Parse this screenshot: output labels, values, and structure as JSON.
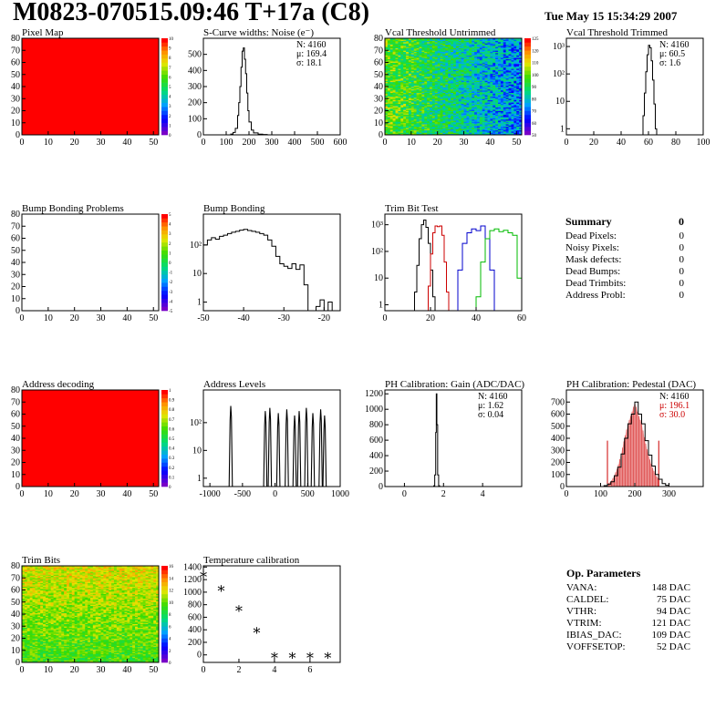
{
  "header": {
    "title": "M0823-070515.09:46 T+17a (C8)",
    "date": "Tue May 15 15:34:29 2007"
  },
  "summary": {
    "title": "Summary",
    "total": "0",
    "rows": [
      {
        "label": "Dead Pixels:",
        "value": "0"
      },
      {
        "label": "Noisy Pixels:",
        "value": "0"
      },
      {
        "label": "Mask defects:",
        "value": "0"
      },
      {
        "label": "Dead Bumps:",
        "value": "0"
      },
      {
        "label": "Dead Trimbits:",
        "value": "0"
      },
      {
        "label": "Address Probl:",
        "value": "0"
      }
    ]
  },
  "params": {
    "title": "Op. Parameters",
    "rows": [
      {
        "label": "VANA:",
        "value": "148 DAC"
      },
      {
        "label": "CALDEL:",
        "value": "75 DAC"
      },
      {
        "label": "VTHR:",
        "value": "94 DAC"
      },
      {
        "label": "VTRIM:",
        "value": "121 DAC"
      },
      {
        "label": "IBIAS_DAC:",
        "value": "109 DAC"
      },
      {
        "label": "VOFFSETOP:",
        "value": "52 DAC"
      }
    ]
  },
  "chart_data": [
    {
      "id": "c0",
      "type": "heatmap",
      "title": "Pixel Map",
      "uniform_color": "#ff0000",
      "xlim": [
        0,
        52
      ],
      "ylim": [
        0,
        80
      ],
      "xticks": [
        0,
        10,
        20,
        30,
        40,
        50
      ],
      "yticks": [
        0,
        10,
        20,
        30,
        40,
        50,
        60,
        70,
        80
      ],
      "zticks": [
        "0",
        "1",
        "2",
        "3",
        "4",
        "5",
        "6",
        "7",
        "8",
        "9",
        "10"
      ]
    },
    {
      "id": "c1",
      "type": "line",
      "title": "S-Curve widths: Noise (e⁻)",
      "xlim": [
        0,
        600
      ],
      "ylim": [
        0,
        600
      ],
      "xticks": [
        0,
        100,
        200,
        300,
        400,
        500,
        600
      ],
      "yticks": [
        0,
        100,
        200,
        300,
        400,
        500
      ],
      "stats": [
        "N: 4160",
        "μ: 169.4",
        "σ: 18.1"
      ],
      "series": [
        {
          "color": "#000000",
          "x": [
            100,
            120,
            130,
            140,
            150,
            155,
            160,
            165,
            170,
            175,
            180,
            185,
            190,
            195,
            200,
            210,
            220,
            240,
            260,
            280,
            300
          ],
          "y": [
            0,
            5,
            15,
            40,
            120,
            200,
            300,
            420,
            520,
            540,
            470,
            380,
            260,
            150,
            80,
            30,
            12,
            4,
            2,
            0,
            0
          ]
        }
      ]
    },
    {
      "id": "c2",
      "type": "heatmap",
      "title": "Vcal Threshold Untrimmed",
      "xlim": [
        0,
        52
      ],
      "ylim": [
        0,
        80
      ],
      "xticks": [
        0,
        10,
        20,
        30,
        40,
        50
      ],
      "yticks": [
        0,
        10,
        20,
        30,
        40,
        50,
        60,
        70,
        80
      ],
      "zticks": [
        "50",
        "60",
        "70",
        "80",
        "90",
        "100",
        "110",
        "120",
        "125"
      ],
      "pattern": "untrimmed"
    },
    {
      "id": "c3",
      "type": "line",
      "log": true,
      "title": "Vcal Threshold Trimmed",
      "xlim": [
        0,
        100
      ],
      "ylim": [
        0.6,
        2000
      ],
      "xticks": [
        0,
        20,
        40,
        60,
        80,
        100
      ],
      "yticks": [
        1,
        10,
        100,
        1000
      ],
      "stats": [
        "N: 4160",
        "μ: 60.5",
        "σ:  1.6"
      ],
      "series": [
        {
          "color": "#000000",
          "x": [
            55,
            56,
            57,
            58,
            59,
            60,
            61,
            62,
            63,
            64,
            65,
            66
          ],
          "y": [
            0.6,
            3,
            20,
            120,
            500,
            1100,
            900,
            300,
            60,
            8,
            1,
            0.6
          ]
        }
      ]
    },
    {
      "id": "c4",
      "type": "heatmap",
      "title": "Bump Bonding Problems",
      "uniform_color": "#ffffff",
      "xlim": [
        0,
        52
      ],
      "ylim": [
        0,
        80
      ],
      "xticks": [
        0,
        10,
        20,
        30,
        40,
        50
      ],
      "yticks": [
        0,
        10,
        20,
        30,
        40,
        50,
        60,
        70,
        80
      ],
      "zticks": [
        "-5",
        "-4",
        "-3",
        "-2",
        "-1",
        "0",
        "1",
        "2",
        "3",
        "4",
        "5"
      ]
    },
    {
      "id": "c5",
      "type": "line",
      "log": true,
      "title": "Bump Bonding",
      "xlim": [
        -50,
        -16
      ],
      "ylim": [
        0.5,
        1200
      ],
      "xticks": [
        -50,
        -40,
        -30,
        -20
      ],
      "yticks": [
        1,
        10,
        100
      ],
      "series": [
        {
          "color": "#000000",
          "x": [
            -50,
            -49,
            -48,
            -47,
            -46,
            -45,
            -44,
            -43,
            -42,
            -41,
            -40,
            -39,
            -38,
            -37,
            -36,
            -35,
            -34,
            -33,
            -32,
            -31,
            -30,
            -29,
            -28,
            -27,
            -26,
            -25,
            -24,
            -23,
            -22,
            -21,
            -20,
            -19,
            -18
          ],
          "y": [
            100,
            150,
            180,
            160,
            200,
            220,
            250,
            280,
            300,
            330,
            350,
            320,
            300,
            280,
            250,
            220,
            150,
            90,
            40,
            22,
            18,
            15,
            22,
            14,
            20,
            4,
            0.5,
            0.5,
            0.7,
            1.2,
            0.5,
            1.0,
            0.5
          ]
        }
      ]
    },
    {
      "id": "c6",
      "type": "line",
      "log": true,
      "title": "Trim Bit Test",
      "xlim": [
        0,
        60
      ],
      "ylim": [
        0.6,
        2500
      ],
      "xticks": [
        0,
        20,
        40,
        60
      ],
      "yticks": [
        1,
        10,
        100,
        1000
      ],
      "series": [
        {
          "color": "#000000",
          "x": [
            12,
            13,
            14,
            15,
            16,
            17,
            18,
            19,
            20,
            21,
            22
          ],
          "y": [
            0.6,
            3,
            30,
            300,
            1000,
            1500,
            800,
            200,
            20,
            2,
            0.6
          ]
        },
        {
          "color": "#cc0000",
          "x": [
            18,
            19,
            20,
            21,
            22,
            23,
            24,
            25,
            26,
            27,
            28
          ],
          "y": [
            0.6,
            5,
            80,
            500,
            900,
            850,
            900,
            400,
            40,
            3,
            0.6
          ]
        },
        {
          "color": "#0000cc",
          "x": [
            30,
            32,
            34,
            36,
            38,
            40,
            42,
            44,
            46,
            48
          ],
          "y": [
            0.6,
            20,
            200,
            500,
            700,
            600,
            900,
            300,
            20,
            0.6
          ]
        },
        {
          "color": "#00bb00",
          "x": [
            38,
            40,
            42,
            44,
            46,
            48,
            50,
            52,
            54,
            56,
            58,
            60
          ],
          "y": [
            0.6,
            2,
            40,
            300,
            600,
            700,
            550,
            620,
            500,
            400,
            10,
            0.6
          ]
        }
      ]
    },
    {
      "id": "c7",
      "type": "heatmap",
      "title": "Address decoding",
      "uniform_color": "#ff0000",
      "xlim": [
        0,
        52
      ],
      "ylim": [
        0,
        80
      ],
      "xticks": [
        0,
        10,
        20,
        30,
        40,
        50
      ],
      "yticks": [
        0,
        10,
        20,
        30,
        40,
        50,
        60,
        70,
        80
      ],
      "zticks": [
        "0",
        "0.1",
        "0.2",
        "0.3",
        "0.4",
        "0.5",
        "0.6",
        "0.7",
        "0.8",
        "0.9",
        "1"
      ]
    },
    {
      "id": "c8",
      "type": "line",
      "log": true,
      "title": "Address Levels",
      "xlim": [
        -1100,
        1000
      ],
      "ylim": [
        0.5,
        1500
      ],
      "xticks": [
        -1000,
        -500,
        0,
        500,
        1000
      ],
      "yticks": [
        1,
        10,
        100
      ],
      "peaks": [
        -680,
        -150,
        -80,
        50,
        180,
        300,
        370,
        480,
        580,
        700,
        760
      ],
      "series": [
        {
          "color": "#000000",
          "x": [],
          "y": []
        }
      ]
    },
    {
      "id": "c9",
      "type": "line",
      "title": "PH Calibration: Gain (ADC/DAC)",
      "xlim": [
        -1,
        6
      ],
      "ylim": [
        0,
        1250
      ],
      "xticks": [
        0,
        2,
        4
      ],
      "yticks": [
        0,
        200,
        400,
        600,
        800,
        1000,
        1200
      ],
      "stats": [
        "N: 4160",
        "μ: 1.62",
        "σ: 0.04"
      ],
      "series": [
        {
          "color": "#000000",
          "x": [
            1.45,
            1.5,
            1.55,
            1.6,
            1.63,
            1.66,
            1.7,
            1.75,
            1.8
          ],
          "y": [
            0,
            10,
            150,
            700,
            1200,
            800,
            150,
            10,
            0
          ]
        }
      ]
    },
    {
      "id": "c10",
      "type": "line",
      "title": "PH Calibration: Pedestal (DAC)",
      "xlim": [
        0,
        400
      ],
      "ylim": [
        0,
        800
      ],
      "xticks": [
        0,
        100,
        200,
        300
      ],
      "yticks": [
        0,
        100,
        200,
        300,
        400,
        500,
        600,
        700
      ],
      "stats": [
        "N: 4160",
        "μ: 196.1",
        "σ: 30.0"
      ],
      "stats_colors": [
        "#000000",
        "#cc0000",
        "#cc0000"
      ],
      "hatch_range": [
        120,
        270
      ],
      "series": [
        {
          "color": "#000000",
          "x": [
            100,
            110,
            120,
            130,
            140,
            150,
            160,
            170,
            180,
            190,
            200,
            210,
            220,
            230,
            240,
            250,
            260,
            270,
            280,
            290,
            300
          ],
          "y": [
            0,
            8,
            20,
            40,
            90,
            160,
            270,
            400,
            520,
            600,
            700,
            600,
            520,
            380,
            260,
            170,
            100,
            60,
            25,
            10,
            0
          ]
        }
      ]
    },
    {
      "id": "c11",
      "type": "heatmap",
      "title": "Trim Bits",
      "xlim": [
        0,
        52
      ],
      "ylim": [
        0,
        80
      ],
      "xticks": [
        0,
        10,
        20,
        30,
        40,
        50
      ],
      "yticks": [
        0,
        10,
        20,
        30,
        40,
        50,
        60,
        70,
        80
      ],
      "zticks": [
        "0",
        "2",
        "4",
        "6",
        "8",
        "10",
        "12",
        "14",
        "16"
      ],
      "pattern": "trimbits"
    },
    {
      "id": "c12",
      "type": "scatter",
      "title": "Temperature calibration",
      "xlim": [
        0,
        7.7
      ],
      "ylim": [
        -120,
        1420
      ],
      "xticks": [
        0,
        2,
        4,
        6
      ],
      "yticks": [
        0,
        200,
        400,
        600,
        800,
        1000,
        1200,
        1400
      ],
      "series": [
        {
          "color": "#000000",
          "x": [
            0,
            1,
            2,
            3,
            4,
            5,
            6,
            7
          ],
          "y": [
            1280,
            1060,
            740,
            390,
            -10,
            -10,
            -10,
            -10
          ]
        }
      ]
    }
  ]
}
